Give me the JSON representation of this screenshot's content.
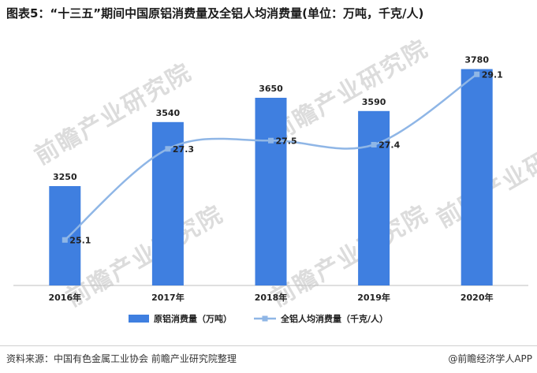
{
  "header": {
    "title": "图表5：“十三五”期间中国原铝消费量及全铝人均消费量(单位：万吨，千克/人)"
  },
  "watermark": {
    "text": "前瞻产业研究院"
  },
  "footer": {
    "source": "资料来源：中国有色金属工业协会 前瞻产业研究院整理",
    "brand": "@前瞻经济学人APP"
  },
  "colors": {
    "bar": "#3f7fe0",
    "line": "#8fb6e6",
    "axis": "#555555"
  },
  "chart_data": {
    "type": "bar",
    "categories": [
      "2016年",
      "2017年",
      "2018年",
      "2019年",
      "2020年"
    ],
    "series": [
      {
        "name": "原铝消费量（万吨）",
        "type": "bar",
        "values": [
          3250,
          3540,
          3650,
          3590,
          3780
        ]
      },
      {
        "name": "全铝人均消费量（千克/人）",
        "type": "line",
        "smooth": true,
        "marker": "square",
        "values": [
          25.1,
          27.3,
          27.5,
          27.4,
          29.1
        ]
      }
    ],
    "title": "",
    "xlabel": "",
    "ylabel": "",
    "bar_axis_range": [
      2800,
      3850
    ],
    "line_axis_range": [
      24,
      29.6
    ],
    "grid": false,
    "legend_position": "bottom"
  }
}
